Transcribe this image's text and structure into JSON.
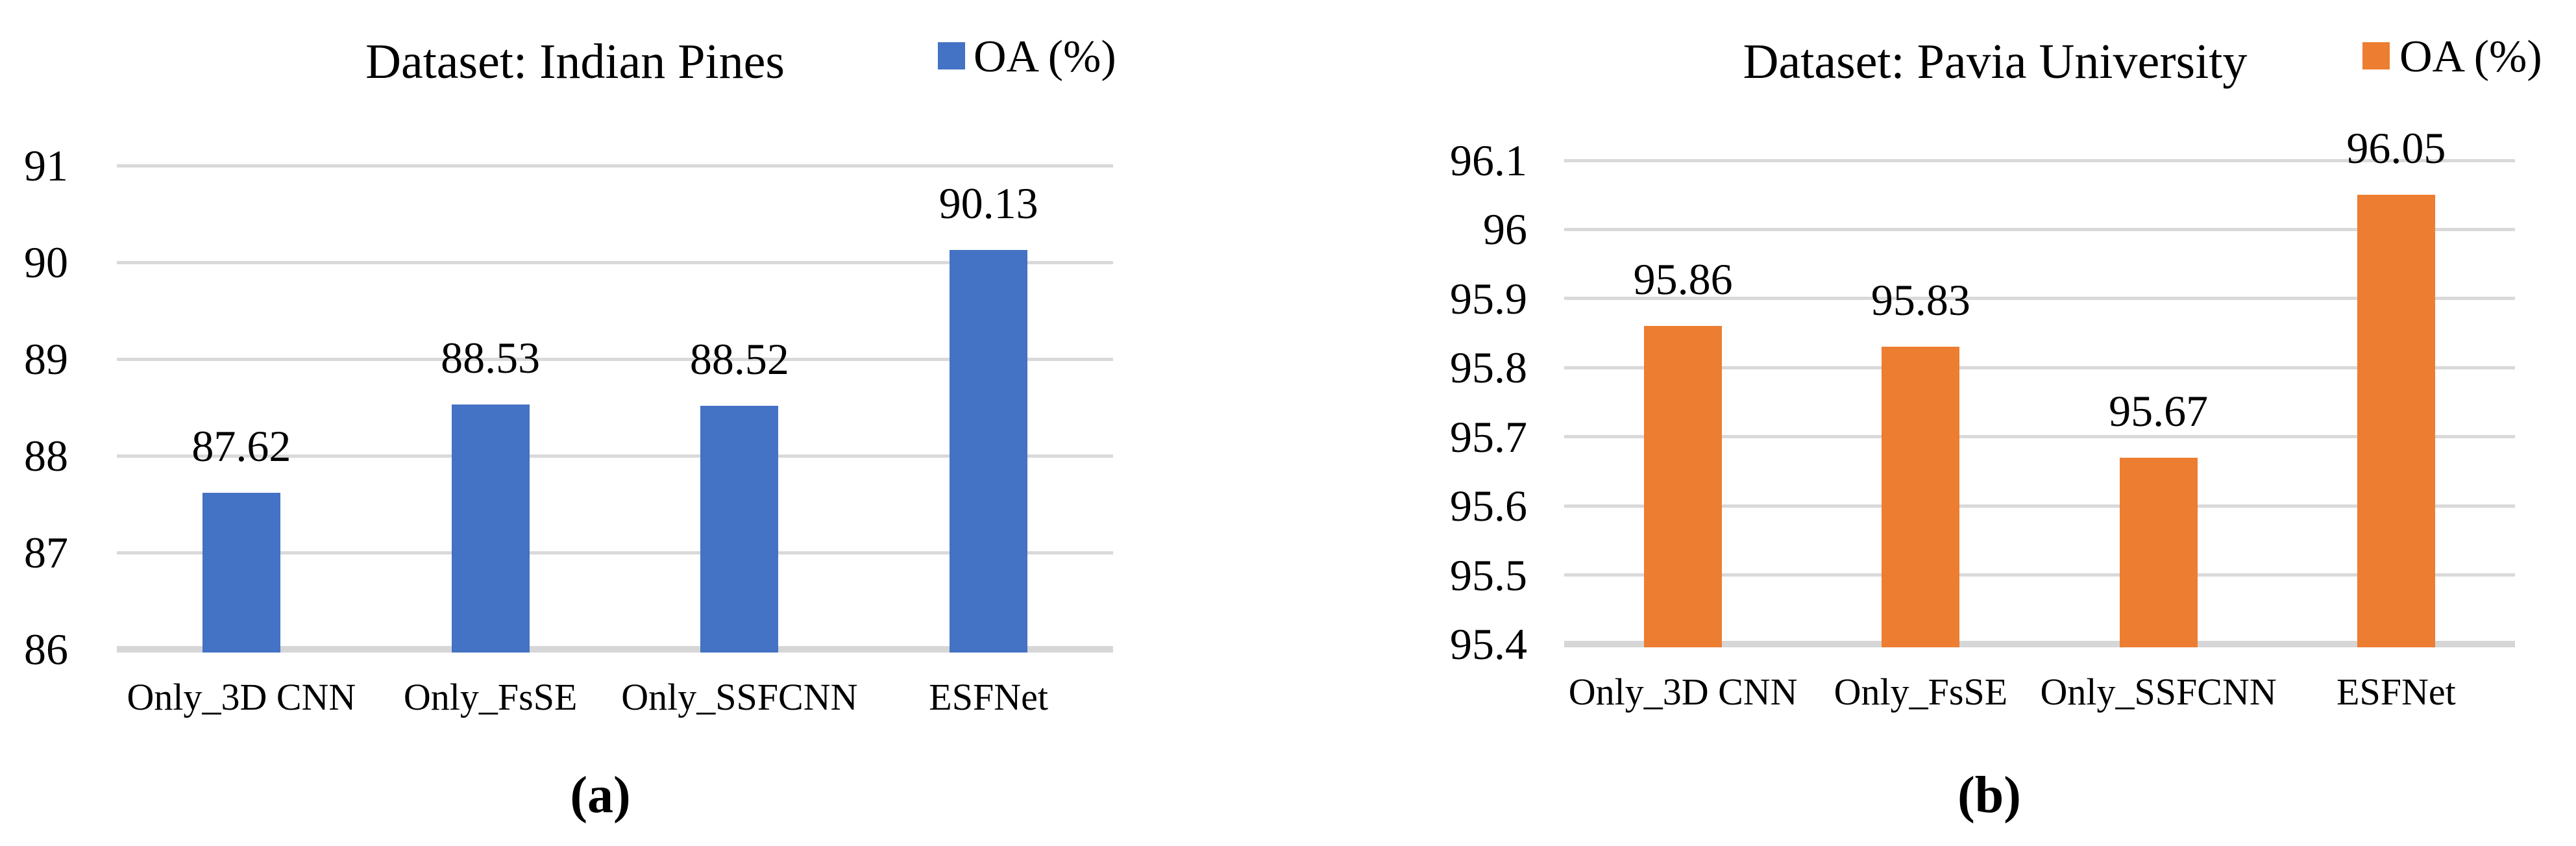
{
  "figure": {
    "background": "#FFFFFF",
    "text_color": "#000000"
  },
  "chart_data": [
    {
      "type": "bar",
      "title": "Dataset: Indian Pines",
      "caption": "(a)",
      "legend": {
        "label": "OA (%)",
        "position": "top-right"
      },
      "series_name": "OA (%)",
      "series_color": "#4472C4",
      "categories": [
        "Only_3D CNN",
        "Only_FsSE",
        "Only_SSFCNN",
        "ESFNet"
      ],
      "values": [
        87.62,
        88.53,
        88.52,
        90.13
      ],
      "value_labels": [
        "87.62",
        "88.53",
        "88.52",
        "90.13"
      ],
      "xlabel": "",
      "ylabel": "",
      "ylim": [
        86,
        91
      ],
      "yticks": [
        "86",
        "87",
        "88",
        "89",
        "90",
        "91"
      ],
      "grid": true,
      "gridline_color": "#D9D9D9",
      "baseline_color": "#D6D6D6"
    },
    {
      "type": "bar",
      "title": "Dataset: Pavia University",
      "caption": "(b)",
      "legend": {
        "label": "OA (%)",
        "position": "top-right"
      },
      "series_name": "OA (%)",
      "series_color": "#ED7D31",
      "categories": [
        "Only_3D CNN",
        "Only_FsSE",
        "Only_SSFCNN",
        "ESFNet"
      ],
      "values": [
        95.86,
        95.83,
        95.67,
        96.05
      ],
      "value_labels": [
        "95.86",
        "95.83",
        "95.67",
        "96.05"
      ],
      "xlabel": "",
      "ylabel": "",
      "ylim": [
        95.4,
        96.1
      ],
      "yticks": [
        "95.4",
        "95.5",
        "95.6",
        "95.7",
        "95.8",
        "95.9",
        "96",
        "96.1"
      ],
      "grid": true,
      "gridline_color": "#D9D9D9",
      "baseline_color": "#D6D6D6"
    }
  ]
}
